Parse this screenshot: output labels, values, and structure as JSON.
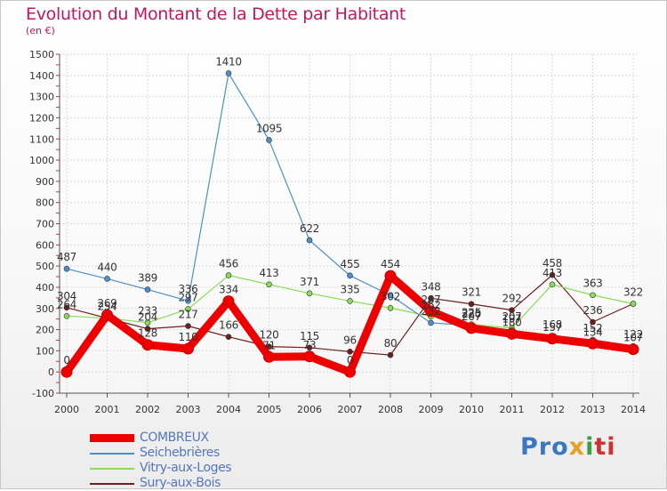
{
  "title": "Evolution du Montant de la Dette par Habitant",
  "subtitle": "(en €)",
  "logo": {
    "text": "Proxiti",
    "colors": [
      "#3a78c0",
      "#e8a020",
      "#3aa040",
      "#d03030"
    ]
  },
  "chart_data": {
    "type": "line",
    "title": "Evolution du Montant de la Dette par Habitant",
    "subtitle": "(en €)",
    "xlabel": "",
    "ylabel": "",
    "x": [
      "2000",
      "2001",
      "2002",
      "2003",
      "2004",
      "2005",
      "2006",
      "2007",
      "2008",
      "2009",
      "2010",
      "2011",
      "2012",
      "2013",
      "2014"
    ],
    "ylim": [
      -100,
      1500
    ],
    "yticks": [
      -100,
      0,
      100,
      200,
      300,
      400,
      500,
      600,
      700,
      800,
      900,
      1000,
      1100,
      1200,
      1300,
      1400,
      1500
    ],
    "grid": true,
    "legend_position": "bottom-left",
    "series": [
      {
        "name": "COMBREUX",
        "color": "#ee0000",
        "values": [
          0,
          269,
          128,
          110,
          334,
          71,
          73,
          0,
          454,
          287,
          207,
          180,
          157,
          134,
          107
        ],
        "labels": [
          "0",
          "269",
          "128",
          "110",
          "334",
          "71",
          "73",
          "0",
          "454",
          "287",
          "207",
          "180",
          "157",
          "134",
          "107"
        ]
      },
      {
        "name": "Seichebrières",
        "color": "#4a90cc",
        "values": [
          487,
          440,
          389,
          336,
          1410,
          1095,
          622,
          455,
          362,
          232,
          220,
          197,
          168,
          152,
          122
        ],
        "labels": [
          "487",
          "440",
          "389",
          "336",
          "1410",
          "1095",
          "622",
          "455",
          "",
          "232",
          "220",
          "197",
          "168",
          "152",
          "122"
        ]
      },
      {
        "name": "Vitry-aux-Loges",
        "color": "#88dd55",
        "values": [
          264,
          254,
          233,
          297,
          456,
          413,
          371,
          335,
          302,
          262,
          225,
          207,
          413,
          363,
          322
        ],
        "labels": [
          "264",
          "254",
          "233",
          "297",
          "456",
          "413",
          "371",
          "335",
          "302",
          "262",
          "225",
          "207",
          "413",
          "363",
          ""
        ]
      },
      {
        "name": "Sury-aux-Bois",
        "color": "#6e1e1e",
        "values": [
          304,
          254,
          204,
          217,
          166,
          120,
          115,
          96,
          80,
          348,
          321,
          292,
          458,
          236,
          322
        ],
        "labels": [
          "304",
          "254",
          "204",
          "217",
          "166",
          "120",
          "115",
          "96",
          "80",
          "348",
          "321",
          "292",
          "458",
          "236",
          "322"
        ]
      }
    ]
  }
}
